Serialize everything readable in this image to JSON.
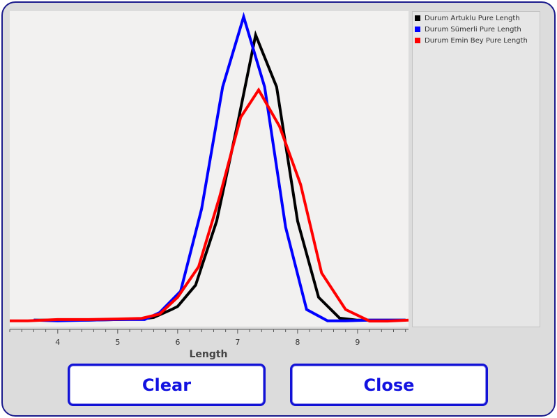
{
  "chart_data": {
    "type": "line",
    "xlabel": "Length",
    "ylabel": "",
    "xlim": [
      3.2,
      9.85
    ],
    "ylim": [
      0,
      100
    ],
    "xticks": [
      4,
      5,
      6,
      7,
      8,
      9
    ],
    "grid": false,
    "legend_position": "right",
    "series": [
      {
        "name": "Durum Artuklu Pure Length",
        "color": "#000000",
        "points": [
          [
            3.6,
            0.5
          ],
          [
            4.0,
            0.5
          ],
          [
            4.5,
            0.5
          ],
          [
            5.0,
            0.7
          ],
          [
            5.4,
            0.9
          ],
          [
            5.6,
            1.4
          ],
          [
            5.9,
            4
          ],
          [
            6.0,
            5
          ],
          [
            6.3,
            12
          ],
          [
            6.65,
            33
          ],
          [
            7.0,
            65
          ],
          [
            7.3,
            94
          ],
          [
            7.65,
            77
          ],
          [
            8.0,
            33
          ],
          [
            8.35,
            8
          ],
          [
            8.7,
            1.2
          ],
          [
            9.0,
            0.5
          ],
          [
            9.4,
            0.5
          ],
          [
            9.8,
            0.5
          ]
        ]
      },
      {
        "name": "Durum Sümerli Pure Length",
        "color": "#0000ff",
        "points": [
          [
            3.6,
            0.5
          ],
          [
            4.0,
            0.3
          ],
          [
            4.5,
            0.5
          ],
          [
            5.0,
            0.7
          ],
          [
            5.45,
            0.7
          ],
          [
            5.7,
            3
          ],
          [
            6.05,
            10
          ],
          [
            6.4,
            37
          ],
          [
            6.75,
            77
          ],
          [
            7.1,
            100
          ],
          [
            7.45,
            77
          ],
          [
            7.8,
            31
          ],
          [
            8.15,
            4
          ],
          [
            8.5,
            0.3
          ],
          [
            8.8,
            0.3
          ],
          [
            9.2,
            0.5
          ],
          [
            9.8,
            0.5
          ]
        ]
      },
      {
        "name": "Durum Emin Bey Pure Length",
        "color": "#ff0000",
        "points": [
          [
            3.2,
            0.3
          ],
          [
            3.5,
            0.3
          ],
          [
            4.0,
            0.7
          ],
          [
            4.5,
            0.7
          ],
          [
            5.0,
            0.9
          ],
          [
            5.4,
            1.1
          ],
          [
            5.7,
            2.5
          ],
          [
            6.0,
            8
          ],
          [
            6.35,
            18
          ],
          [
            6.7,
            41
          ],
          [
            7.05,
            67
          ],
          [
            7.35,
            76
          ],
          [
            7.7,
            64
          ],
          [
            8.05,
            45
          ],
          [
            8.4,
            16
          ],
          [
            8.8,
            4
          ],
          [
            9.2,
            0.2
          ],
          [
            9.5,
            0.2
          ],
          [
            9.85,
            0.5
          ]
        ]
      }
    ]
  },
  "buttons": {
    "clear": "Clear",
    "close": "Close"
  }
}
